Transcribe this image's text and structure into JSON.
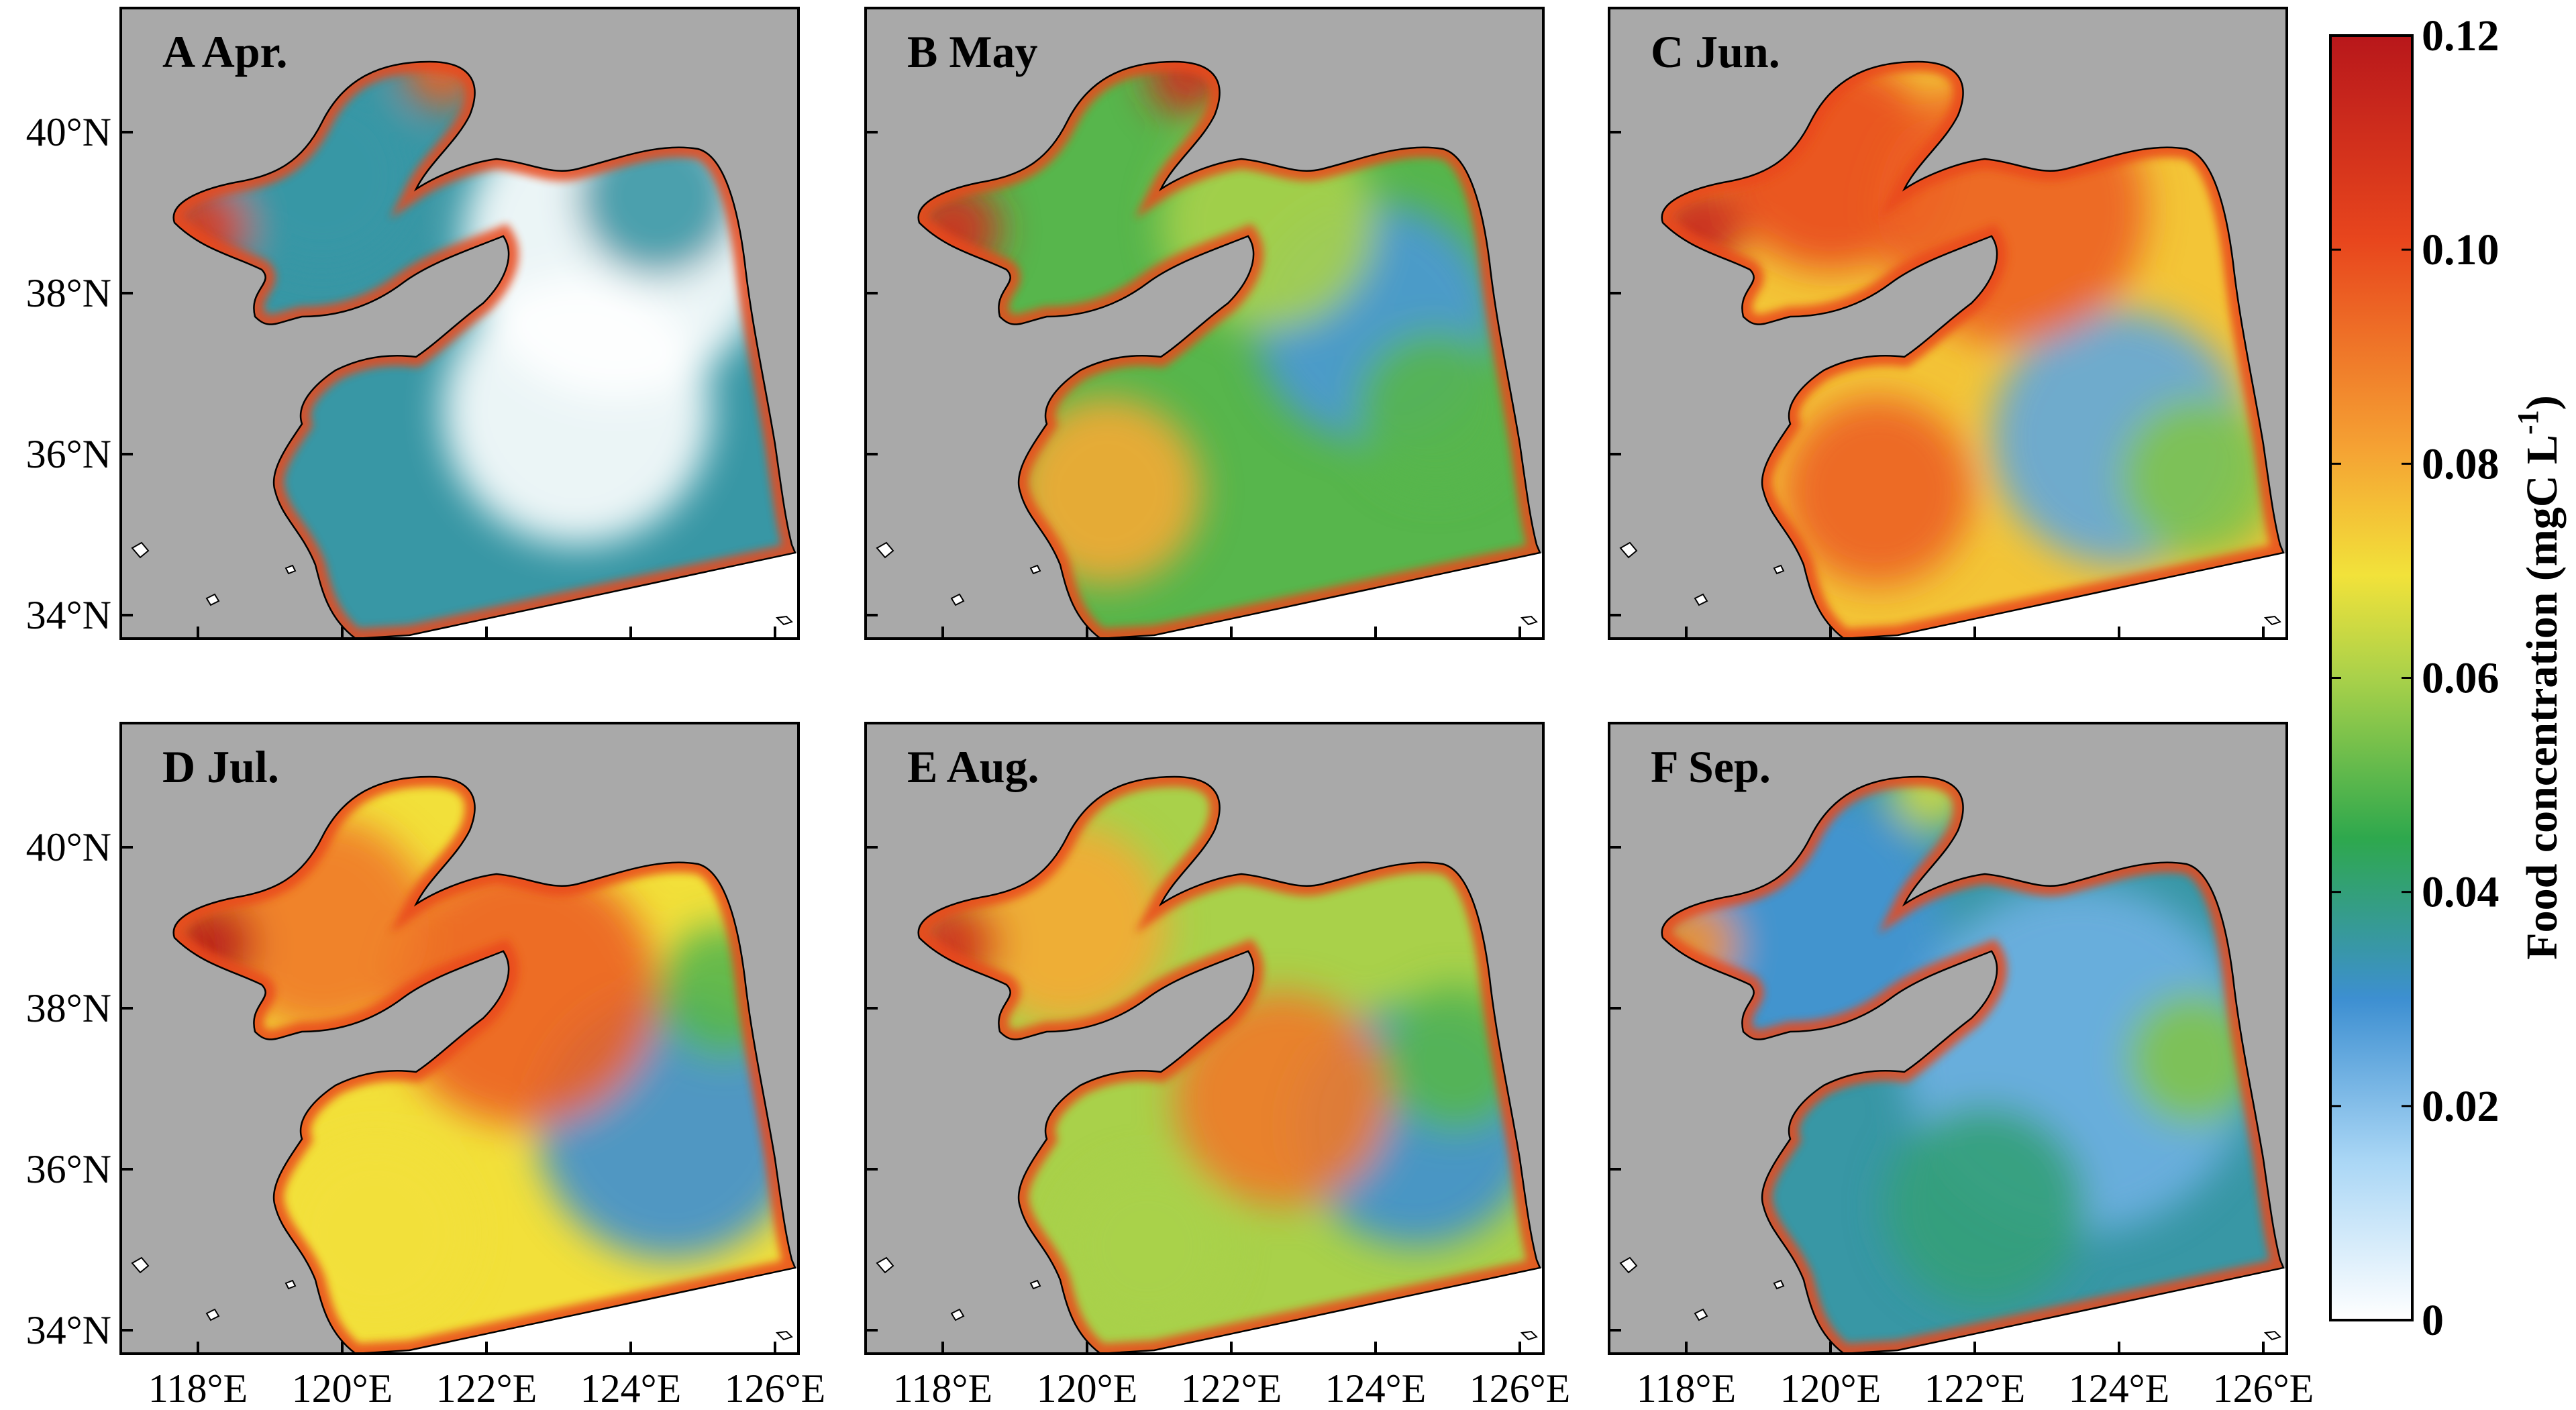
{
  "panels": [
    {
      "label": "A Apr.",
      "month": "Apr",
      "mean_level": 0.035
    },
    {
      "label": "B May",
      "month": "May",
      "mean_level": 0.05
    },
    {
      "label": "C Jun.",
      "month": "Jun",
      "mean_level": 0.075
    },
    {
      "label": "D Jul.",
      "month": "Jul",
      "mean_level": 0.07
    },
    {
      "label": "E Aug.",
      "month": "Aug",
      "mean_level": 0.06
    },
    {
      "label": "F Sep.",
      "month": "Sep",
      "mean_level": 0.035
    }
  ],
  "latitude_ticks": [
    "40°N",
    "38°N",
    "36°N",
    "34°N"
  ],
  "longitude_ticks": [
    "118°E",
    "120°E",
    "122°E",
    "124°E",
    "126°E"
  ],
  "colorbar": {
    "title_main": "Food concentration (mgC L",
    "title_sup": "-1",
    "title_end": ")",
    "tick_labels": [
      "0.12",
      "0.10",
      "0.08",
      "0.06",
      "0.04",
      "0.02",
      "0"
    ],
    "min": 0,
    "max": 0.12,
    "stops": [
      "#ffffff",
      "#a9d6f5",
      "#3d8fd1",
      "#2ea84d",
      "#a9d14a",
      "#f2e23a",
      "#f5a133",
      "#e8461d",
      "#b8171b"
    ]
  },
  "colors": {
    "land": "#a9a9a9",
    "outside": "#ffffff",
    "frame": "#000000"
  }
}
